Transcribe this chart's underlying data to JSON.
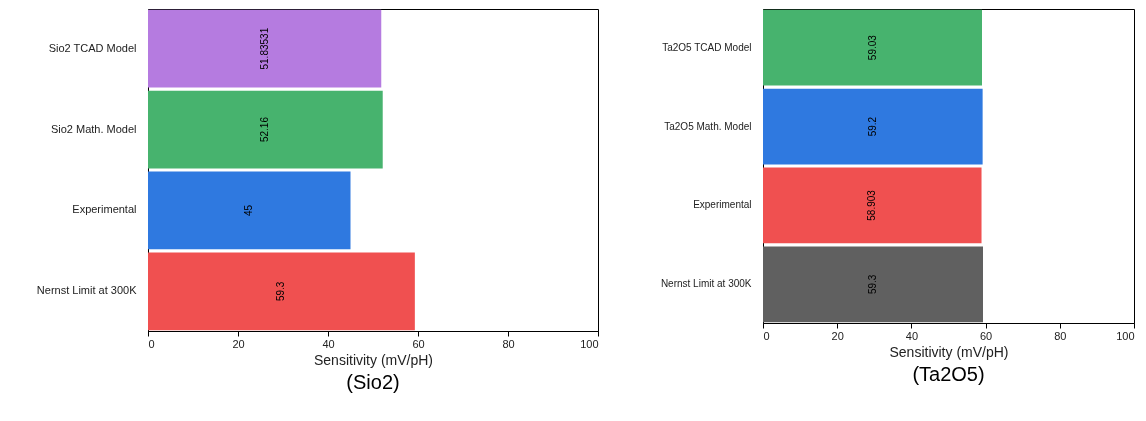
{
  "chart_data": [
    {
      "type": "bar",
      "orientation": "horizontal",
      "title": "(Sio2)",
      "xlabel": "Sensitivity (mV/pH)",
      "categories": [
        "Sio2 TCAD Model",
        "Sio2 Math. Model",
        "Experimental",
        "Nernst Limit at 300K"
      ],
      "values": [
        51.83531,
        52.16,
        45,
        59.3
      ],
      "colors": [
        "#b57be0",
        "#47b36e",
        "#2f79e0",
        "#f05050"
      ],
      "xlim": [
        0,
        100
      ],
      "xticks": [
        0,
        20,
        40,
        60,
        80,
        100
      ],
      "data_labels": true,
      "grid": false
    },
    {
      "type": "bar",
      "orientation": "horizontal",
      "title": "(Ta2O5)",
      "xlabel": "Sensitivity (mV/pH)",
      "categories": [
        "Ta2O5 TCAD Model",
        "Ta2O5 Math. Model",
        "Experimental",
        "Nernst Limit at 300K"
      ],
      "values": [
        59.03,
        59.2,
        58.903,
        59.3
      ],
      "colors": [
        "#47b36e",
        "#2f79e0",
        "#f05050",
        "#606060"
      ],
      "xlim": [
        0,
        100
      ],
      "xticks": [
        0,
        20,
        40,
        60,
        80,
        100
      ],
      "data_labels": true,
      "grid": false
    }
  ]
}
